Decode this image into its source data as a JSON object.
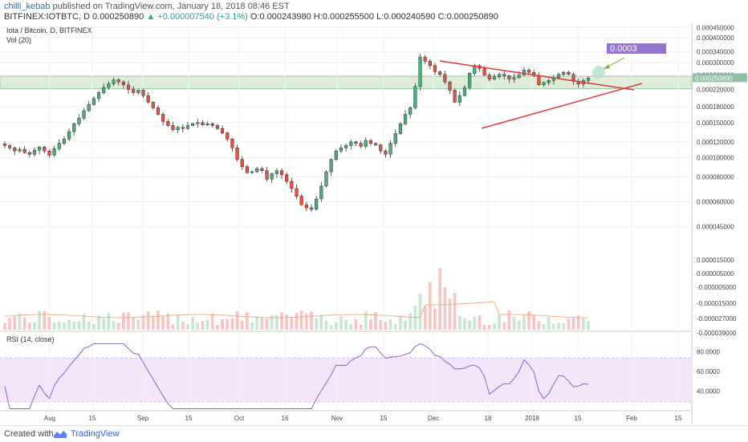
{
  "header": {
    "author": "chilli_kebab",
    "published": "published on TradingView.com, January 18, 2018 08:46 EST",
    "symbol": "BITFINEX:IOTBTC, D",
    "last": "0.000250890",
    "change": "+0.000007540 (+3.1%)",
    "open": "O:0.000243980",
    "high": "H:0.000255500",
    "low": "L:0.000240590",
    "close": "C:0.000250890"
  },
  "chart_data": {
    "type": "candlestick",
    "title": "Iota / Bitcoin, D, BITFINEX",
    "volume_label": "Vol (20)",
    "rsi_label": "RSI (14, close)",
    "x_ticks": [
      "Aug",
      "15",
      "Sep",
      "15",
      "Oct",
      "16",
      "Nov",
      "15",
      "Dec",
      "18",
      "2018",
      "15",
      "Feb",
      "15"
    ],
    "price_ticks": [
      "0.000450000",
      "0.000400000",
      "0.000340000",
      "0.000300000",
      "0.000260000",
      "0.000220000",
      "0.000180000",
      "0.000150000",
      "0.000120000",
      "0.000100000",
      "0.000080000",
      "0.000060000",
      "0.000045000"
    ],
    "volume_ticks": [
      "0.000015000",
      "0.000005000",
      "-0.000005000",
      "-0.000015000",
      "-0.000027000",
      "-0.000039000"
    ],
    "rsi_ticks": [
      "80.0000",
      "60.0000",
      "40.0000"
    ],
    "price_range": [
      4.2e-05,
      0.00046
    ],
    "rsi_range": [
      20,
      90
    ],
    "rsi_band": [
      30,
      70
    ],
    "last_price": "0.000250890",
    "annotation": "0.0003",
    "support_zone": [
      0.000222,
      0.000256
    ],
    "closes": [
      0.000115,
      0.000112,
      0.000108,
      0.00011,
      0.000106,
      0.000104,
      0.000109,
      0.000113,
      0.000108,
      0.000103,
      0.000111,
      0.000118,
      0.000124,
      0.000135,
      0.000148,
      0.000158,
      0.000172,
      0.000185,
      0.000198,
      0.000212,
      0.000225,
      0.000235,
      0.000246,
      0.00024,
      0.000232,
      0.00022,
      0.000212,
      0.000218,
      0.000205,
      0.00019,
      0.000178,
      0.000165,
      0.000152,
      0.000145,
      0.000138,
      0.000142,
      0.00014,
      0.000145,
      0.000148,
      0.00015,
      0.000146,
      0.000148,
      0.000145,
      0.00014,
      0.000133,
      0.000124,
      0.000112,
      9.8e-05,
      9e-05,
      8.4e-05,
      8.5e-05,
      8.8e-05,
      8.6e-05,
      7.8e-05,
      8.3e-05,
      8.6e-05,
      8.2e-05,
      7.6e-05,
      7e-05,
      6.4e-05,
      5.8e-05,
      5.6e-05,
      5.5e-05,
      6.2e-05,
      7.2e-05,
      8.5e-05,
      9.8e-05,
      0.000108,
      0.000112,
      0.000115,
      0.00012,
      0.000118,
      0.000114,
      0.000122,
      0.000118,
      0.000116,
      0.000108,
      0.000104,
      0.000118,
      0.000132,
      0.000148,
      0.000165,
      0.000178,
      0.000228,
      0.00032,
      0.000305,
      0.00029,
      0.00027,
      0.000262,
      0.00024,
      0.000218,
      0.00019,
      0.000205,
      0.000225,
      0.000265,
      0.00029,
      0.00028,
      0.00026,
      0.000248,
      0.000255,
      0.000262,
      0.000258,
      0.000248,
      0.000252,
      0.00026,
      0.000275,
      0.000268,
      0.000258,
      0.000232,
      0.000238,
      0.000244,
      0.000252,
      0.000262,
      0.000268,
      0.000262,
      0.000242,
      0.000234,
      0.0002439,
      0.00025089
    ]
  },
  "footer": {
    "created_with": "Created with",
    "brand": "TradingView"
  }
}
